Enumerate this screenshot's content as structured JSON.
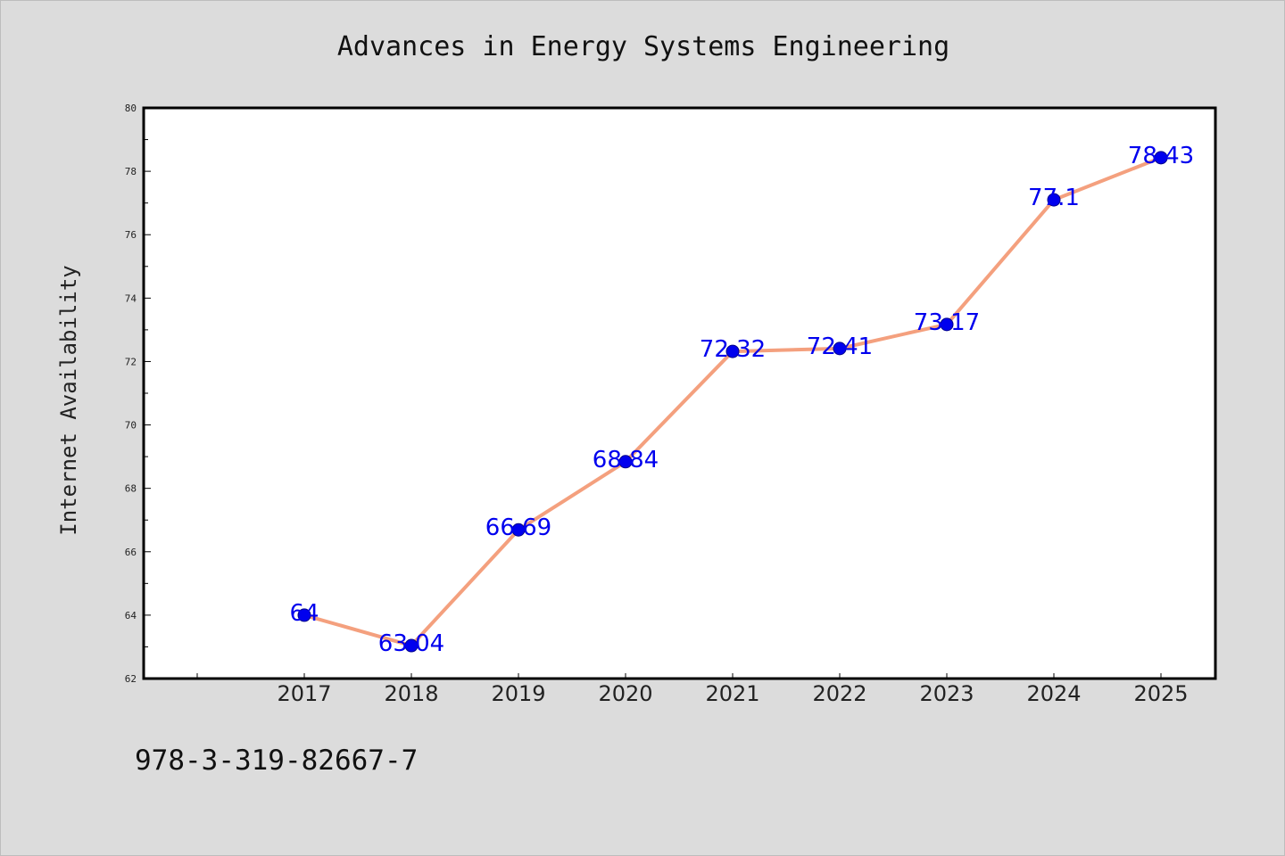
{
  "chart_data": {
    "type": "line",
    "title": "Advances in Energy Systems Engineering",
    "xlabel": "",
    "ylabel": "Internet Availability",
    "categories": [
      "2017",
      "2018",
      "2019",
      "2020",
      "2021",
      "2022",
      "2023",
      "2024",
      "2025"
    ],
    "series": [
      {
        "values": [
          64,
          63.04,
          66.69,
          68.84,
          72.32,
          72.41,
          73.17,
          77.1,
          78.43
        ],
        "labels": [
          "64",
          "63.04",
          "66.69",
          "68.84",
          "72.32",
          "72.41",
          "73.17",
          "77.1",
          "78.43"
        ]
      }
    ],
    "ylim": [
      62,
      80
    ],
    "yticks": [
      "62",
      "64",
      "66",
      "68",
      "70",
      "72",
      "74",
      "76",
      "78",
      "80"
    ],
    "grid": false,
    "legend": "none",
    "colors": {
      "line": "#f4a07e",
      "marker": "#0000ee",
      "label": "#0000ee",
      "background": "#dcdcdc",
      "plot_background": "#ffffff"
    }
  },
  "footer": {
    "isbn": "978-3-319-82667-7"
  }
}
